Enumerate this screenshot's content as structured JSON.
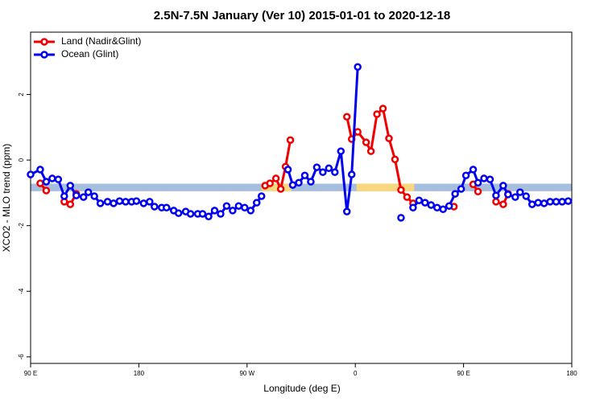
{
  "chart_data": {
    "type": "line",
    "title": "2.5N-7.5N January (Ver 10)   2015-01-01 to 2020-12-18",
    "x_label": "Longitude (deg E)",
    "y_label": "XCO2 - MLO trend (ppm)",
    "xlim": [
      90,
      540
    ],
    "ylim": [
      -6.2,
      3.9
    ],
    "xticks": [
      {
        "value": 90,
        "label": "90 E"
      },
      180,
      {
        "value": 270,
        "label": "90 W"
      },
      {
        "value": 360,
        "label": "0"
      },
      {
        "value": 450,
        "label": "90 E"
      },
      {
        "value": 540,
        "label": "180"
      }
    ],
    "yticks": [
      -6,
      -4,
      -2,
      0,
      2
    ],
    "legend": "top-left",
    "bands": [
      {
        "color": "#a7bfdf",
        "xlim": [
          90,
          540
        ],
        "ylim": [
          -0.95,
          -0.72
        ]
      },
      {
        "color": "#f9d77e",
        "xlim": [
          282,
          307
        ],
        "ylim": [
          -0.95,
          -0.72
        ]
      },
      {
        "color": "#f9d77e",
        "xlim": [
          361,
          409
        ],
        "ylim": [
          -0.95,
          -0.72
        ]
      }
    ],
    "series": [
      {
        "name": "Land (Nadir&Glint)",
        "color": "#ee0000",
        "x": [
          98,
          103,
          null,
          118,
          123,
          128,
          null,
          285,
          289,
          294,
          298,
          302,
          306,
          null,
          353,
          357,
          362,
          369,
          373,
          378,
          383,
          388,
          393,
          398,
          403,
          408,
          null,
          442,
          null,
          458,
          462,
          null,
          477,
          483,
          487
        ],
        "values": [
          -0.71,
          -0.93,
          null,
          -1.27,
          -1.35,
          -1.03,
          null,
          -0.78,
          -0.71,
          -0.56,
          -0.88,
          -0.2,
          0.61,
          null,
          1.32,
          0.64,
          0.86,
          0.54,
          0.27,
          1.4,
          1.57,
          0.66,
          0.02,
          -0.91,
          -1.13,
          -1.32,
          null,
          -1.42,
          null,
          -0.74,
          -0.96,
          null,
          -1.27,
          -1.35,
          -1.03
        ]
      },
      {
        "name": "Ocean (Glint)",
        "color": "#0000ee",
        "x": [
          90,
          98,
          103,
          108,
          113,
          118,
          123,
          128,
          134,
          138,
          143,
          148,
          154,
          159,
          164,
          169,
          174,
          178,
          184,
          189,
          193,
          199,
          203,
          209,
          213,
          219,
          223,
          229,
          233,
          238,
          243,
          248,
          253,
          258,
          263,
          268,
          273,
          278,
          282,
          null,
          304,
          308,
          313,
          318,
          323,
          328,
          333,
          338,
          343,
          348,
          353,
          357,
          362,
          null,
          398,
          null,
          408,
          413,
          418,
          423,
          428,
          433,
          438,
          443,
          448,
          452,
          458,
          462,
          467,
          472,
          477,
          483,
          487,
          493,
          497,
          502,
          507,
          512,
          517,
          522,
          527,
          532,
          537
        ],
        "values": [
          -0.44,
          -0.29,
          -0.66,
          -0.56,
          -0.59,
          -1.1,
          -0.78,
          -1.08,
          -1.13,
          -0.98,
          -1.1,
          -1.32,
          -1.27,
          -1.32,
          -1.25,
          -1.27,
          -1.27,
          -1.25,
          -1.32,
          -1.27,
          -1.42,
          -1.45,
          -1.45,
          -1.54,
          -1.62,
          -1.57,
          -1.64,
          -1.64,
          -1.64,
          -1.72,
          -1.54,
          -1.64,
          -1.4,
          -1.54,
          -1.4,
          -1.45,
          -1.54,
          -1.3,
          -1.1,
          null,
          -0.29,
          -0.76,
          -0.69,
          -0.47,
          -0.66,
          -0.22,
          -0.37,
          -0.25,
          -0.37,
          0.27,
          -1.57,
          -0.44,
          2.84,
          null,
          -1.76,
          null,
          -1.45,
          -1.23,
          -1.3,
          -1.37,
          -1.45,
          -1.5,
          -1.4,
          -1.03,
          -0.88,
          -0.47,
          -0.29,
          -0.69,
          -0.56,
          -0.59,
          -1.08,
          -0.78,
          -1.05,
          -1.13,
          -0.98,
          -1.1,
          -1.35,
          -1.3,
          -1.32,
          -1.27,
          -1.27,
          -1.27,
          -1.25
        ]
      }
    ]
  }
}
